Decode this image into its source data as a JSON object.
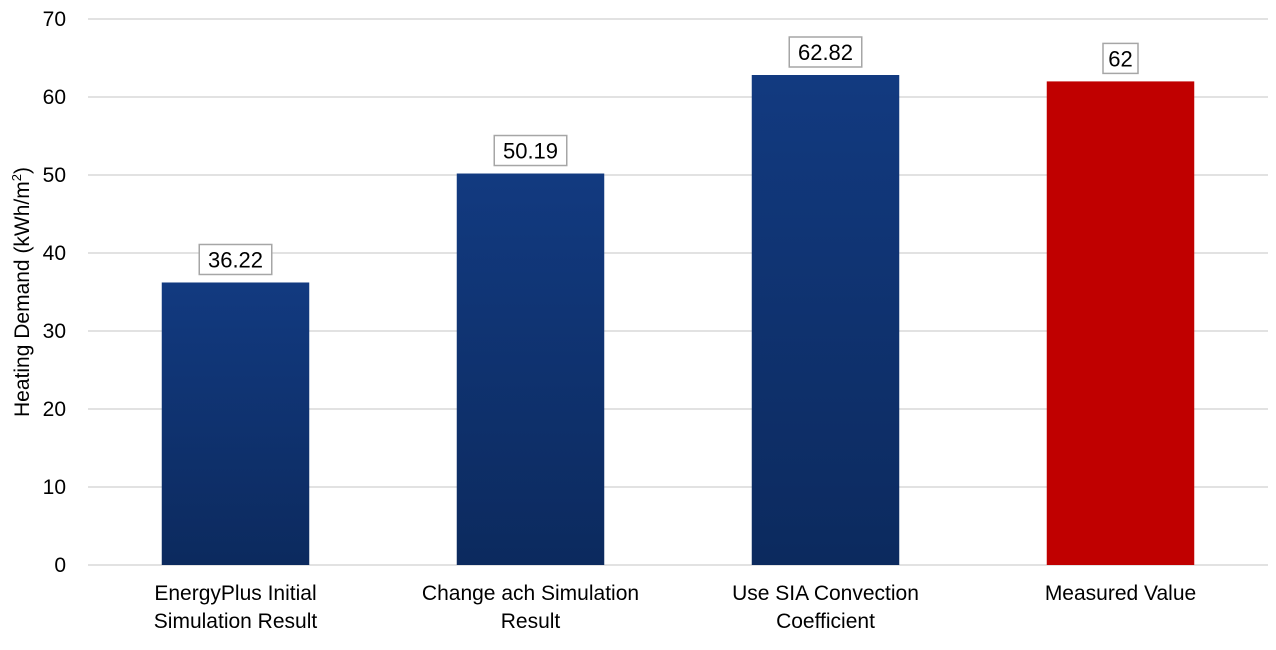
{
  "chart_data": {
    "type": "bar",
    "categories": [
      [
        "EnergyPlus Initial",
        "Simulation Result"
      ],
      [
        "Change ach Simulation",
        "Result"
      ],
      [
        "Use SIA Convection",
        "Coefficient"
      ],
      [
        "Measured Value"
      ]
    ],
    "values": [
      36.22,
      50.19,
      62.82,
      62
    ],
    "data_labels": [
      "36.22",
      "50.19",
      "62.82",
      "62"
    ],
    "ylabel": "Heating Demand (kWh/m",
    "ylabel_superscript": "2",
    "ylabel_suffix": ")",
    "ylim": [
      0,
      70
    ],
    "yticks": [
      0,
      10,
      20,
      30,
      40,
      50,
      60,
      70
    ],
    "ytick_labels": [
      "0",
      "10",
      "20",
      "30",
      "40",
      "50",
      "60",
      "70"
    ],
    "grid": true,
    "bar_colors": [
      "#123a80",
      "#123a80",
      "#123a80",
      "#c00000"
    ],
    "gradient_bottom_color": "#0c2a5e",
    "gridline_color": "#d9d9d9",
    "label_box_border_color": "#a6a6a6"
  }
}
